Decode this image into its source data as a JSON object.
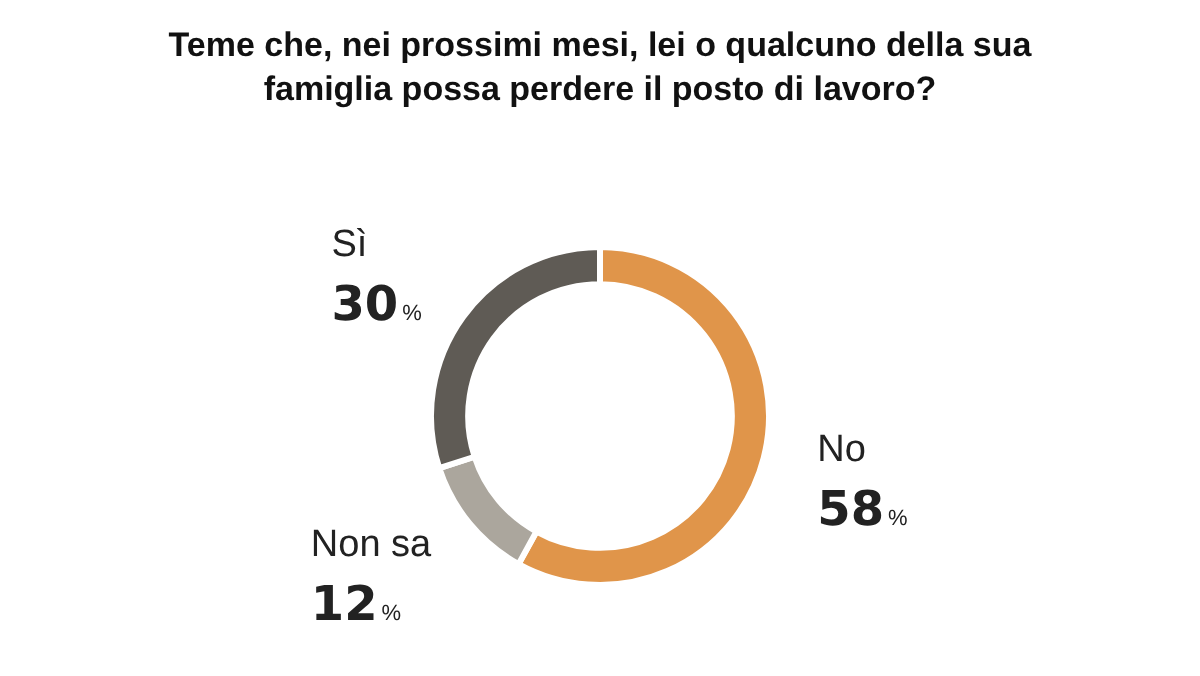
{
  "chart_data": {
    "type": "donut",
    "title": "Teme che, nei prossimi mesi, lei o qualcuno della sua famiglia possa perdere il posto di lavoro?",
    "categories": [
      "No",
      "Non sa",
      "Sì"
    ],
    "values": [
      58,
      12,
      30
    ],
    "colors": [
      "#e0954a",
      "#aba69d",
      "#5f5b55"
    ],
    "value_labels": [
      "58%",
      "12%",
      "30%"
    ],
    "legend": false
  }
}
